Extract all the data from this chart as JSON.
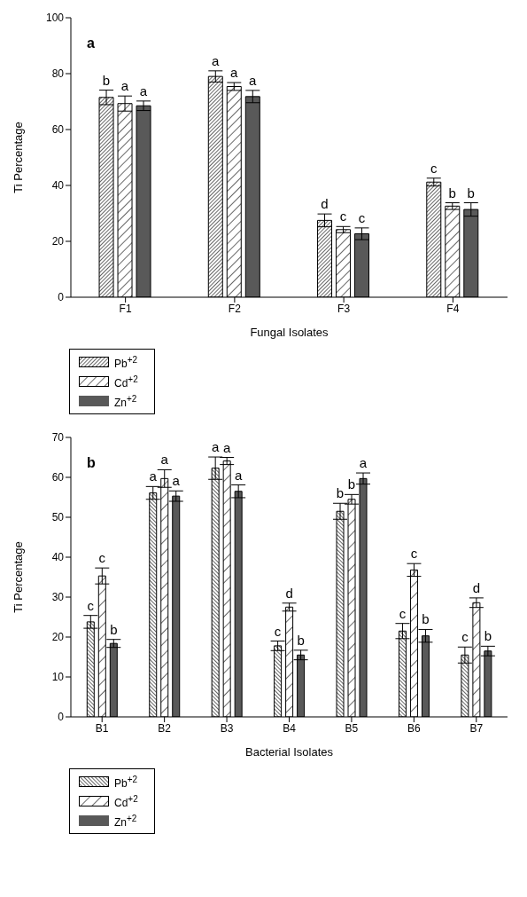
{
  "chart_data": [
    {
      "type": "bar",
      "xlabel": "Fungal Isolates",
      "ylabel": "Ti Percentage",
      "categories": [
        "F1",
        "F2",
        "F3",
        "F4"
      ],
      "ylim": [
        0,
        100
      ],
      "yticks": [
        0,
        20,
        40,
        60,
        80,
        100
      ],
      "grid": false,
      "legend": "bottom left",
      "annotations": [
        "a"
      ],
      "series": [
        {
          "name": "Pb$^{+2}$",
          "color": "#000000",
          "values": [
            71.5,
            79,
            27.5,
            41.2
          ],
          "errors": [
            2.6,
            2,
            2.3,
            1.4
          ],
          "value_labels": [
            "b",
            "a",
            "d",
            "c"
          ]
        },
        {
          "name": "Cd$^{+2}$",
          "color": "#000000",
          "values": [
            69.3,
            75.4,
            24.2,
            32.6
          ],
          "errors": [
            2.7,
            1.4,
            1.1,
            1.2
          ],
          "value_labels": [
            "a",
            "a",
            "c",
            "b"
          ]
        },
        {
          "name": "Zn$^{+2}$",
          "color": "#595959",
          "values": [
            68.5,
            71.8,
            22.7,
            31.4
          ],
          "errors": [
            1.7,
            2.2,
            2.1,
            2.4
          ],
          "value_labels": [
            "a",
            "a",
            "c",
            "b"
          ]
        }
      ]
    },
    {
      "type": "bar",
      "xlabel": "Bacterial Isolates",
      "ylabel": "Ti Percentage",
      "categories": [
        "B1",
        "B2",
        "B3",
        "B4",
        "B5",
        "B6",
        "B7"
      ],
      "ylim": [
        0,
        70
      ],
      "yticks": [
        0,
        10,
        20,
        30,
        40,
        50,
        60,
        70
      ],
      "grid": false,
      "legend": "bottom left",
      "annotations": [
        "b"
      ],
      "series": [
        {
          "name": "Pb$^{+2}$",
          "color": "#000000",
          "values": [
            23.8,
            56.1,
            62.3,
            17.8,
            51.5,
            21.5,
            15.5
          ],
          "errors": [
            1.6,
            1.6,
            2.8,
            1.2,
            2,
            1.9,
            2
          ],
          "value_labels": [
            "c",
            "a",
            "a",
            "c",
            "b",
            "c",
            "c"
          ]
        },
        {
          "name": "Cd$^{+2}$",
          "color": "#000000",
          "values": [
            35.3,
            59.7,
            64.1,
            27.5,
            54.5,
            36.8,
            28.6
          ],
          "errors": [
            2,
            2.2,
            0.9,
            1,
            1.2,
            1.6,
            1.2
          ],
          "value_labels": [
            "c",
            "a",
            "a",
            "d",
            "b",
            "c",
            "d"
          ]
        },
        {
          "name": "Zn$^{+2}$",
          "color": "#595959",
          "values": [
            18.4,
            55.3,
            56.5,
            15.5,
            59.7,
            20.3,
            16.5
          ],
          "errors": [
            1,
            1.3,
            1.6,
            1.2,
            1.4,
            1.6,
            1.2
          ],
          "value_labels": [
            "b",
            "a",
            "a",
            "b",
            "a",
            "b",
            "b"
          ]
        }
      ]
    }
  ]
}
